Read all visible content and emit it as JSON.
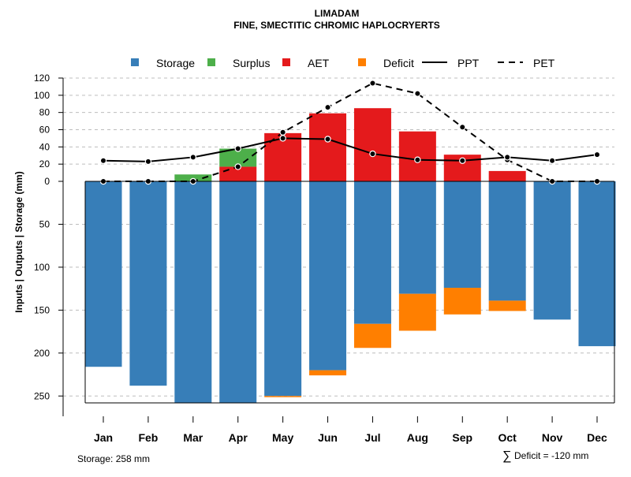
{
  "chart_data": {
    "type": "bar",
    "title": "LIMADAM",
    "subtitle": "FINE, SMECTITIC CHROMIC HAPLOCRYERTS",
    "ylabel": "Inputs | Outputs | Storage    (mm)",
    "categories": [
      "Jan",
      "Feb",
      "Mar",
      "Apr",
      "May",
      "Jun",
      "Jul",
      "Aug",
      "Sep",
      "Oct",
      "Nov",
      "Dec"
    ],
    "y_upper_ticks": [
      0,
      20,
      40,
      60,
      80,
      100,
      120
    ],
    "y_lower_ticks": [
      50,
      100,
      150,
      200,
      250
    ],
    "ylim_upper": [
      0,
      120
    ],
    "ylim_lower": [
      0,
      258
    ],
    "legend": {
      "placement": "top",
      "items": [
        {
          "label": "Storage",
          "kind": "box",
          "color": "#377EB8"
        },
        {
          "label": "Surplus",
          "kind": "box",
          "color": "#4DAF4A"
        },
        {
          "label": "AET",
          "kind": "box",
          "color": "#E41A1C"
        },
        {
          "label": "Deficit",
          "kind": "box",
          "color": "#FF7F00"
        },
        {
          "label": "PPT",
          "kind": "solid-line",
          "color": "#000000"
        },
        {
          "label": "PET",
          "kind": "dashed-line",
          "color": "#000000"
        }
      ]
    },
    "series": [
      {
        "name": "Storage",
        "color": "#377EB8",
        "values": [
          216,
          238,
          258,
          258,
          250,
          220,
          166,
          131,
          124,
          139,
          161,
          192
        ]
      },
      {
        "name": "Deficit",
        "color": "#FF7F00",
        "values": [
          0,
          0,
          0,
          0,
          1,
          6,
          28,
          43,
          31,
          12,
          0,
          0
        ]
      },
      {
        "name": "AET",
        "color": "#E41A1C",
        "values": [
          0,
          0,
          0,
          17,
          56,
          79,
          85,
          58,
          31,
          12,
          0,
          0
        ]
      },
      {
        "name": "Surplus",
        "color": "#4DAF4A",
        "values": [
          0,
          0,
          8,
          21,
          0,
          0,
          0,
          0,
          0,
          0,
          0,
          0
        ]
      },
      {
        "name": "PPT",
        "color": "#000000",
        "values": [
          24,
          23,
          28,
          38,
          50,
          49,
          32,
          25,
          24,
          28,
          24,
          31
        ]
      },
      {
        "name": "PET",
        "color": "#000000",
        "values": [
          0,
          0,
          0,
          17,
          57,
          86,
          114,
          102,
          63,
          25,
          0,
          0
        ]
      }
    ],
    "footer_left": "Storage: 258 mm",
    "footer_right": "Deficit = -120 mm",
    "footer_right_symbol": "∑"
  }
}
